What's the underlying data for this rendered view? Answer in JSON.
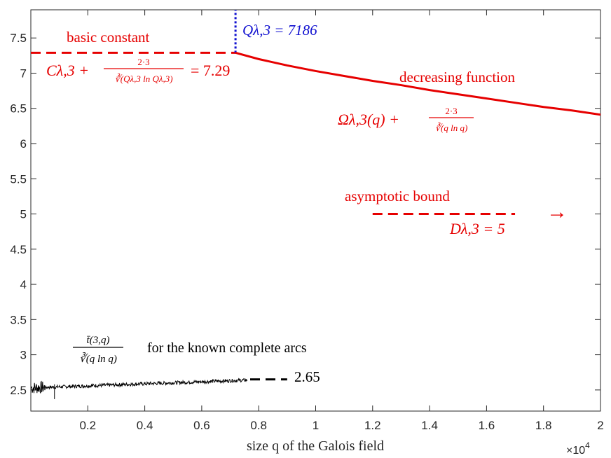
{
  "chart_data": {
    "type": "line",
    "xlabel": "size q of the Galois field",
    "x_exponent_base": "×10",
    "x_exponent_power": "4",
    "xlim": [
      0,
      20000
    ],
    "ylim": [
      2.2,
      7.9
    ],
    "x_ticks": [
      2000,
      4000,
      6000,
      8000,
      10000,
      12000,
      14000,
      16000,
      18000,
      20000
    ],
    "x_tick_labels": [
      "0.2",
      "0.4",
      "0.6",
      "0.8",
      "1",
      "1.2",
      "1.4",
      "1.6",
      "1.8",
      "2"
    ],
    "y_ticks": [
      2.5,
      3,
      3.5,
      4,
      4.5,
      5,
      5.5,
      6,
      6.5,
      7,
      7.5
    ],
    "y_tick_labels": [
      "2.5",
      "3",
      "3.5",
      "4",
      "4.5",
      "5",
      "5.5",
      "6",
      "6.5",
      "7",
      "7.5"
    ],
    "grid": false,
    "colors": {
      "red": "#e60000",
      "blue": "#1010d0",
      "black": "#000000",
      "axis": "#262626"
    },
    "basic_constant": {
      "value": 7.29,
      "x_range": [
        0,
        7186
      ],
      "label": "basic constant",
      "formula_lhs": "Cλ,3 +",
      "formula_num": "2·3",
      "formula_den": "∛(Qλ,3 ln Qλ,3)",
      "formula_rhs": "= 7.29"
    },
    "threshold": {
      "x": 7186,
      "y_range": [
        7.29,
        7.9
      ],
      "label": "Qλ,3 = 7186"
    },
    "decreasing_function": {
      "label": "decreasing function",
      "formula_lhs": "Ωλ,3(q) +",
      "formula_num": "2·3",
      "formula_den": "∛(q ln q)",
      "points": [
        [
          7186,
          7.29
        ],
        [
          8000,
          7.2
        ],
        [
          9000,
          7.11
        ],
        [
          10000,
          7.03
        ],
        [
          11000,
          6.96
        ],
        [
          12000,
          6.89
        ],
        [
          13000,
          6.83
        ],
        [
          14000,
          6.76
        ],
        [
          15000,
          6.7
        ],
        [
          16000,
          6.64
        ],
        [
          17000,
          6.58
        ],
        [
          18000,
          6.52
        ],
        [
          19000,
          6.47
        ],
        [
          20000,
          6.41
        ]
      ]
    },
    "asymptotic_bound": {
      "value": 5,
      "x_range": [
        12000,
        17000
      ],
      "label": "asymptotic bound",
      "formula": "Dλ,3 = 5",
      "arrow": "→"
    },
    "known_arcs": {
      "x_range": [
        0,
        7600
      ],
      "level": 2.6,
      "extension_value": 2.65,
      "extension_x": [
        7700,
        9000
      ],
      "extension_label": "2.65",
      "formula_num": "t̄(3,q)",
      "formula_den": "∛(q ln q)",
      "label": "for the known complete arcs"
    }
  }
}
